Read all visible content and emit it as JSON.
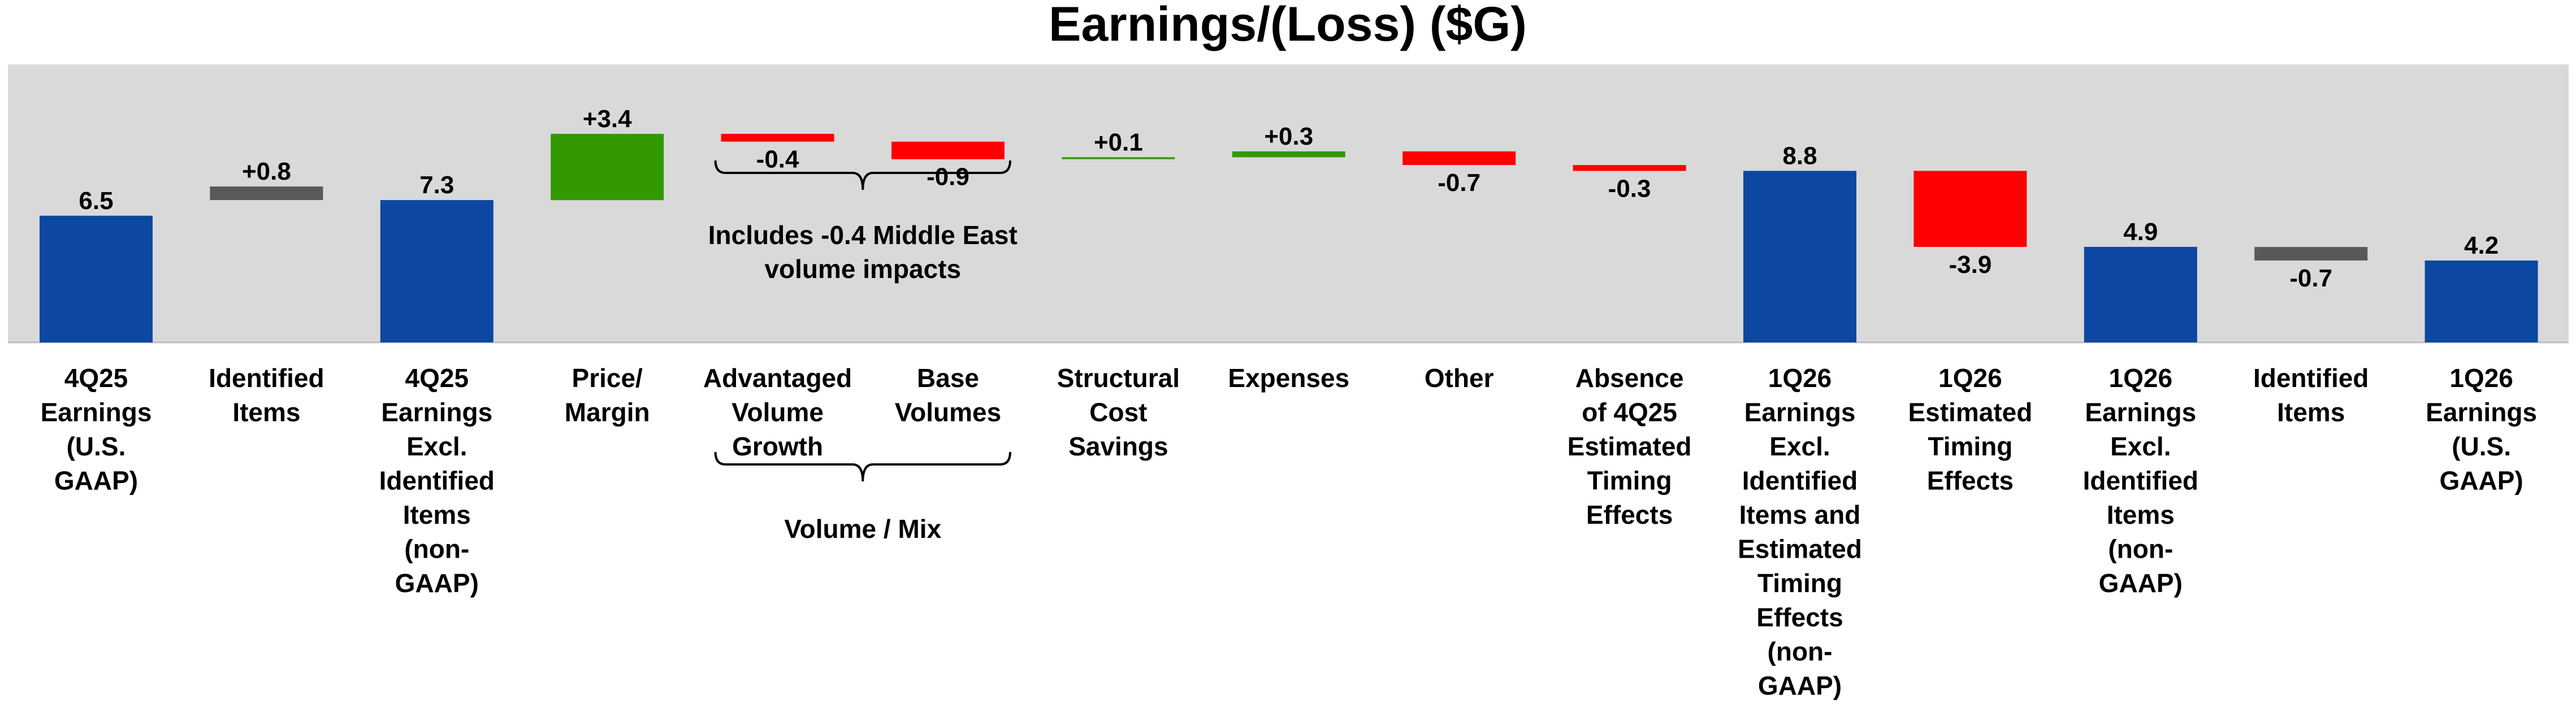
{
  "chart_data": {
    "type": "bar",
    "subtype": "waterfall",
    "title": "Earnings/(Loss) ($G)",
    "xlabel": "",
    "ylabel": "",
    "ylim": [
      0,
      10
    ],
    "grid": false,
    "legend": "none",
    "colors": {
      "total": "#0C47A1",
      "positive": "#339900",
      "negative": "#FF0000",
      "identified": "#595959",
      "plot_background": "#D9D9D9"
    },
    "steps": [
      {
        "category": "4Q25 Earnings (U.S. GAAP)",
        "kind": "total",
        "value": 6.5,
        "label": "6.5"
      },
      {
        "category": "Identified Items",
        "kind": "identified",
        "value": 0.8,
        "label": "+0.8"
      },
      {
        "category": "4Q25 Earnings Excl. Identified Items (non-GAAP)",
        "kind": "total",
        "value": 7.3,
        "label": "7.3"
      },
      {
        "category": "Price/ Margin",
        "kind": "positive",
        "value": 3.4,
        "label": "+3.4"
      },
      {
        "category": "Advantaged Volume Growth",
        "kind": "negative",
        "value": -0.4,
        "label": "-0.4"
      },
      {
        "category": "Base Volumes",
        "kind": "negative",
        "value": -0.9,
        "label": "-0.9"
      },
      {
        "category": "Structural Cost Savings",
        "kind": "positive",
        "value": 0.1,
        "label": "+0.1"
      },
      {
        "category": "Expenses",
        "kind": "positive",
        "value": 0.3,
        "label": "+0.3"
      },
      {
        "category": "Other",
        "kind": "negative",
        "value": -0.7,
        "label": "-0.7"
      },
      {
        "category": "Absence of 4Q25 Estimated Timing Effects",
        "kind": "negative",
        "value": -0.3,
        "label": "-0.3"
      },
      {
        "category": "1Q26 Earnings Excl. Identified Items and Estimated Timing Effects (non-GAAP)",
        "kind": "total",
        "value": 8.8,
        "label": "8.8"
      },
      {
        "category": "1Q26 Estimated Timing Effects",
        "kind": "negative",
        "value": -3.9,
        "label": "-3.9"
      },
      {
        "category": "1Q26 Earnings Excl. Identified Items (non-GAAP)",
        "kind": "total",
        "value": 4.9,
        "label": "4.9"
      },
      {
        "category": "Identified Items",
        "kind": "identified",
        "value": -0.7,
        "label": "-0.7"
      },
      {
        "category": "1Q26 Earnings (U.S. GAAP)",
        "kind": "total",
        "value": 4.2,
        "label": "4.2"
      }
    ],
    "category_lines": [
      [
        "4Q25",
        "Earnings",
        "(U.S.",
        "GAAP)"
      ],
      [
        "Identified",
        "Items"
      ],
      [
        "4Q25",
        "Earnings",
        "Excl.",
        "Identified",
        "Items",
        "(non-",
        "GAAP)"
      ],
      [
        "Price/",
        "Margin"
      ],
      [
        "Advantaged",
        "Volume",
        "Growth"
      ],
      [
        "Base",
        "Volumes"
      ],
      [
        "Structural",
        "Cost",
        "Savings"
      ],
      [
        "Expenses"
      ],
      [
        "Other"
      ],
      [
        "Absence",
        "of 4Q25",
        "Estimated",
        "Timing",
        "Effects"
      ],
      [
        "1Q26",
        "Earnings",
        "Excl.",
        "Identified",
        "Items and",
        "Estimated",
        "Timing",
        "Effects",
        "(non-",
        "GAAP)"
      ],
      [
        "1Q26",
        "Estimated",
        "Timing",
        "Effects"
      ],
      [
        "1Q26",
        "Earnings",
        "Excl.",
        "Identified",
        "Items",
        "(non-",
        "GAAP)"
      ],
      [
        "Identified",
        "Items"
      ],
      [
        "1Q26",
        "Earnings",
        "(U.S.",
        "GAAP)"
      ]
    ],
    "annotations": [
      {
        "name": "middle-east-note",
        "lines": [
          "Includes -0.4 Middle East",
          "volume impacts"
        ],
        "spans": [
          4,
          5
        ],
        "position": "inside-plot"
      },
      {
        "name": "volume-mix-group",
        "lines": [
          "Volume / Mix"
        ],
        "spans": [
          4,
          5
        ],
        "position": "below-axis"
      }
    ]
  }
}
